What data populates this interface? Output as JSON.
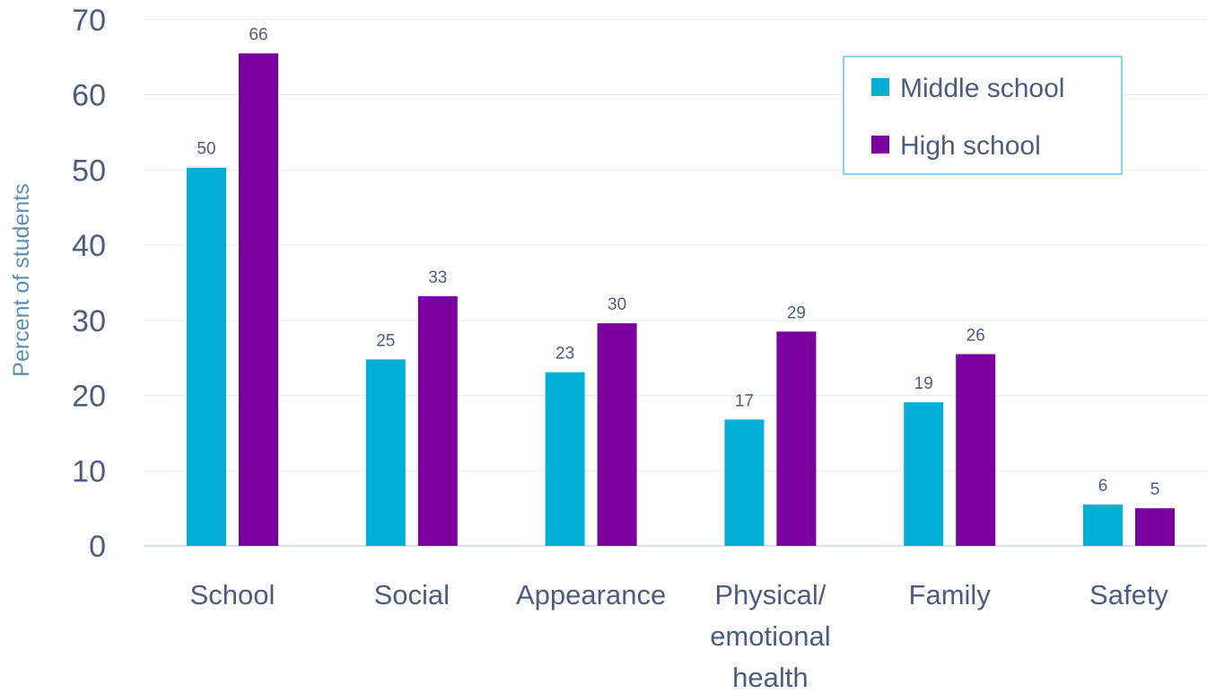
{
  "chart_data": {
    "type": "bar",
    "title": "",
    "xlabel": "",
    "ylabel": "Percent of students",
    "ylim": [
      0,
      70
    ],
    "yticks": [
      0,
      10,
      20,
      30,
      40,
      50,
      60,
      70
    ],
    "grid": true,
    "legend_position": "top-right",
    "categories": [
      [
        "School"
      ],
      [
        "Social"
      ],
      [
        "Appearance"
      ],
      [
        "Physical/",
        "emotional",
        "health"
      ],
      [
        "Family"
      ],
      [
        "Safety"
      ]
    ],
    "series": [
      {
        "name": "Middle school",
        "color": "#00b0d8",
        "values": [
          50,
          25,
          23,
          17,
          19,
          6
        ]
      },
      {
        "name": "High school",
        "color": "#7a00a0",
        "values": [
          66,
          33,
          30,
          29,
          26,
          5
        ]
      }
    ],
    "bar_heights": {
      "Middle school": [
        50.3,
        24.8,
        23.1,
        16.8,
        19.1,
        5.5
      ],
      "High school": [
        65.5,
        33.2,
        29.6,
        28.5,
        25.5,
        5.0
      ]
    }
  }
}
